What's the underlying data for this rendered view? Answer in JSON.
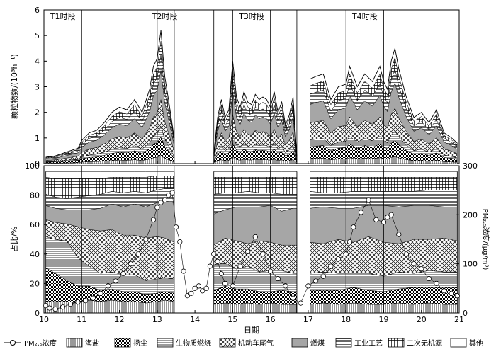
{
  "chart_data": [
    {
      "type": "area",
      "panel": "top",
      "ylabel": "颗粒物数/(10³h⁻¹)",
      "yticks": [
        "0",
        "1",
        "2",
        "3",
        "4",
        "5",
        "6"
      ],
      "ylim": [
        0,
        6
      ],
      "stacked": true,
      "period_labels": [
        "T1时段",
        "T2时段",
        "T3时段",
        "T4时段"
      ],
      "segments": [
        {
          "name": "T1-T2",
          "x": [
            10.05,
            10.3,
            10.6,
            10.9,
            11.0,
            11.2,
            11.4,
            11.6,
            11.8,
            12.0,
            12.2,
            12.4,
            12.6,
            12.8,
            12.9,
            13.0,
            13.1,
            13.2,
            13.3,
            13.45
          ],
          "total": [
            0.25,
            0.3,
            0.45,
            0.6,
            0.9,
            1.2,
            1.3,
            1.6,
            2.0,
            2.2,
            2.1,
            2.5,
            2.0,
            2.9,
            3.8,
            4.1,
            5.2,
            3.4,
            2.5,
            1.0
          ]
        },
        {
          "name": "T3",
          "x": [
            14.5,
            14.6,
            14.7,
            14.8,
            14.9,
            15.0,
            15.1,
            15.2,
            15.3,
            15.4,
            15.5,
            15.6,
            15.7,
            15.8,
            15.9,
            16.0,
            16.1,
            16.2,
            16.3,
            16.4,
            16.5,
            16.6,
            16.7
          ],
          "total": [
            0.4,
            1.8,
            2.5,
            1.8,
            2.1,
            4.0,
            2.6,
            2.2,
            2.8,
            2.4,
            2.3,
            2.7,
            2.5,
            2.6,
            2.5,
            2.2,
            2.8,
            2.0,
            2.4,
            1.5,
            1.9,
            2.6,
            0.3
          ]
        },
        {
          "name": "T4",
          "x": [
            17.05,
            17.2,
            17.4,
            17.6,
            17.8,
            18.0,
            18.1,
            18.3,
            18.5,
            18.7,
            18.9,
            19.0,
            19.1,
            19.2,
            19.3,
            19.4,
            19.6,
            19.8,
            20.0,
            20.2,
            20.4,
            20.6,
            20.8,
            20.95
          ],
          "total": [
            3.3,
            3.4,
            3.5,
            2.5,
            3.0,
            3.1,
            3.8,
            3.0,
            3.5,
            3.2,
            3.8,
            3.2,
            2.9,
            4.0,
            4.5,
            3.7,
            2.6,
            1.8,
            2.0,
            1.6,
            2.1,
            1.2,
            1.0,
            0.8
          ]
        }
      ],
      "layer_fractions": [
        0.06,
        0.14,
        0.08,
        0.2,
        0.22,
        0.12,
        0.1,
        0.08
      ]
    },
    {
      "type": "area",
      "panel": "bottom",
      "ylabel": "占比/%",
      "y2label": "PM₂.₅浓度/(μg/m³)",
      "yticks": [
        "0",
        "20",
        "40",
        "60",
        "80",
        "100"
      ],
      "y2ticks": [
        "0",
        "100",
        "200",
        "300"
      ],
      "ylim": [
        0,
        100
      ],
      "y2lim": [
        0,
        300
      ],
      "xlabel": "日期",
      "xticks": [
        "10",
        "11",
        "12",
        "13",
        "14",
        "15",
        "16",
        "17",
        "18",
        "19",
        "20",
        "21"
      ],
      "xlim": [
        10,
        21
      ],
      "stacked_percent": true,
      "categories": [
        "海盐",
        "扬尘",
        "生物质燃烧",
        "机动车尾气",
        "燃煤",
        "工业工艺",
        "二次无机源",
        "其他"
      ],
      "segments": [
        {
          "name": "T1-T2",
          "x": [
            10.05,
            10.3,
            10.6,
            10.9,
            11.2,
            11.5,
            11.8,
            12.1,
            12.4,
            12.7,
            13.0,
            13.2,
            13.45
          ],
          "shares": [
            [
              8,
              8,
              8,
              7,
              9,
              8,
              9,
              8,
              8,
              7,
              8,
              9,
              8
            ],
            [
              24,
              20,
              15,
              12,
              10,
              8,
              8,
              7,
              7,
              6,
              6,
              6,
              6
            ],
            [
              22,
              24,
              28,
              20,
              14,
              12,
              12,
              12,
              12,
              10,
              10,
              10,
              10
            ],
            [
              12,
              12,
              12,
              22,
              26,
              30,
              30,
              28,
              28,
              30,
              30,
              28,
              26
            ],
            [
              10,
              10,
              10,
              12,
              14,
              16,
              18,
              20,
              22,
              22,
              24,
              26,
              28
            ],
            [
              8,
              8,
              8,
              9,
              10,
              10,
              9,
              10,
              9,
              10,
              9,
              9,
              10
            ],
            [
              12,
              13,
              14,
              13,
              12,
              11,
              10,
              11,
              10,
              11,
              10,
              9,
              9
            ],
            [
              4,
              5,
              5,
              5,
              5,
              5,
              4,
              4,
              4,
              4,
              3,
              3,
              3
            ]
          ]
        },
        {
          "name": "T3",
          "x": [
            14.5,
            14.8,
            15.1,
            15.4,
            15.7,
            16.0,
            16.3,
            16.6,
            16.7
          ],
          "shares": [
            [
              6,
              7,
              6,
              7,
              6,
              7,
              6,
              6,
              6
            ],
            [
              10,
              12,
              11,
              10,
              9,
              8,
              10,
              9,
              9
            ],
            [
              18,
              16,
              14,
              16,
              14,
              15,
              14,
              13,
              13
            ],
            [
              14,
              18,
              20,
              16,
              22,
              20,
              18,
              20,
              20
            ],
            [
              22,
              20,
              24,
              26,
              24,
              26,
              24,
              26,
              26
            ],
            [
              14,
              12,
              10,
              11,
              10,
              9,
              12,
              10,
              10
            ],
            [
              12,
              11,
              11,
              10,
              11,
              11,
              12,
              12,
              12
            ],
            [
              4,
              4,
              4,
              4,
              4,
              4,
              4,
              4,
              4
            ]
          ]
        },
        {
          "name": "T4",
          "x": [
            17.05,
            17.4,
            17.8,
            18.2,
            18.6,
            19.0,
            19.4,
            19.8,
            20.2,
            20.6,
            20.95
          ],
          "shares": [
            [
              6,
              7,
              6,
              7,
              6,
              6,
              7,
              6,
              7,
              6,
              6
            ],
            [
              10,
              9,
              10,
              11,
              10,
              9,
              10,
              12,
              11,
              12,
              12
            ],
            [
              12,
              13,
              12,
              10,
              12,
              11,
              12,
              10,
              12,
              11,
              11
            ],
            [
              22,
              20,
              24,
              22,
              26,
              24,
              20,
              24,
              22,
              24,
              22
            ],
            [
              24,
              26,
              22,
              24,
              22,
              26,
              26,
              24,
              24,
              22,
              24
            ],
            [
              12,
              10,
              11,
              12,
              10,
              10,
              11,
              10,
              11,
              12,
              12
            ],
            [
              10,
              11,
              11,
              10,
              10,
              10,
              10,
              10,
              9,
              9,
              9
            ],
            [
              4,
              4,
              4,
              4,
              4,
              4,
              4,
              4,
              4,
              4,
              4
            ]
          ]
        }
      ],
      "pm25": {
        "name": "PM₂.₅浓度",
        "x": [
          10.05,
          10.15,
          10.3,
          10.5,
          10.7,
          10.9,
          11.1,
          11.3,
          11.5,
          11.7,
          11.9,
          12.1,
          12.3,
          12.5,
          12.7,
          12.9,
          13.0,
          13.1,
          13.2,
          13.3,
          13.4,
          13.5,
          13.6,
          13.7,
          13.8,
          13.9,
          14.0,
          14.1,
          14.2,
          14.3,
          14.4,
          14.5,
          14.6,
          14.7,
          14.8,
          15.0,
          15.2,
          15.4,
          15.6,
          15.8,
          16.0,
          16.2,
          16.4,
          16.6,
          16.8,
          17.0,
          17.2,
          17.4,
          17.6,
          17.8,
          18.0,
          18.1,
          18.2,
          18.4,
          18.6,
          18.8,
          19.0,
          19.1,
          19.2,
          19.4,
          19.6,
          19.8,
          20.0,
          20.2,
          20.4,
          20.6,
          20.8,
          20.95
        ],
        "values": [
          15,
          10,
          8,
          12,
          18,
          22,
          25,
          30,
          40,
          55,
          65,
          80,
          100,
          120,
          150,
          190,
          215,
          225,
          230,
          240,
          245,
          175,
          145,
          85,
          35,
          40,
          50,
          55,
          45,
          50,
          95,
          120,
          105,
          80,
          60,
          55,
          95,
          125,
          155,
          120,
          85,
          70,
          55,
          30,
          20,
          55,
          65,
          75,
          95,
          110,
          120,
          145,
          175,
          205,
          230,
          190,
          185,
          195,
          200,
          160,
          120,
          100,
          90,
          70,
          60,
          45,
          40,
          35
        ]
      },
      "legend_position": "bottom"
    }
  ],
  "legend": [
    {
      "label": "PM₂.₅浓度",
      "pattern": "line-circle"
    },
    {
      "label": "海盐",
      "pattern": "vlines"
    },
    {
      "label": "扬尘",
      "pattern": "dense-grid"
    },
    {
      "label": "生物质燃烧",
      "pattern": "hlines"
    },
    {
      "label": "机动车尾气",
      "pattern": "crosshatch"
    },
    {
      "label": "燃煤",
      "pattern": "gray"
    },
    {
      "label": "工业工艺",
      "pattern": "hlines-fine"
    },
    {
      "label": "二次无机源",
      "pattern": "grid"
    },
    {
      "label": "其他",
      "pattern": "white"
    }
  ],
  "colors": {
    "gray_fill": "#a6a6a6",
    "line": "#000000"
  }
}
